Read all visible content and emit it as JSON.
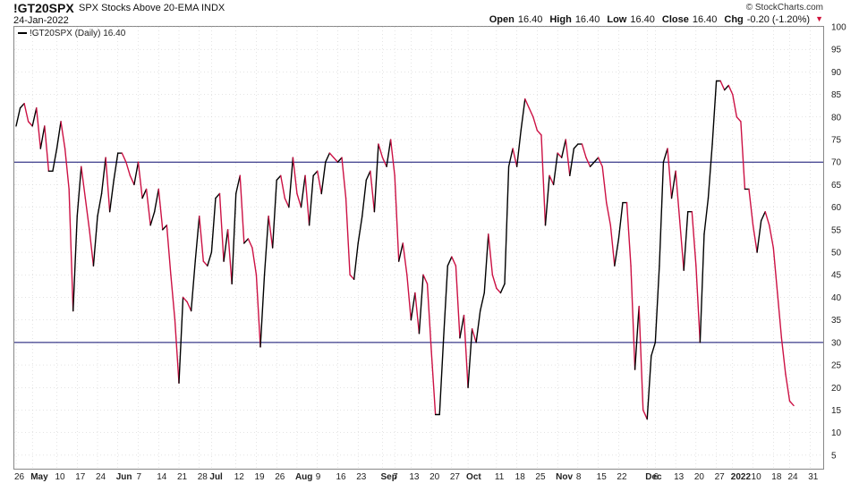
{
  "header": {
    "symbol": "!GT20SPX",
    "description": "SPX Stocks Above 20-EMA INDX",
    "date": "24-Jan-2022",
    "copyright": "© StockCharts.com",
    "ohlc": {
      "open_label": "Open",
      "open": "16.40",
      "high_label": "High",
      "high": "16.40",
      "low_label": "Low",
      "low": "16.40",
      "close_label": "Close",
      "close": "16.40",
      "chg_label": "Chg",
      "chg": "-0.20 (-1.20%)"
    }
  },
  "legend": {
    "label": "!GT20SPX (Daily) 16.40"
  },
  "colors": {
    "up": "#000000",
    "down": "#cc1144",
    "ref_line": "#0a0a6e",
    "grid": "#c8c8c8"
  },
  "chart_data": {
    "type": "line",
    "title": "SPX Stocks Above 20-EMA",
    "ylim": [
      2,
      100
    ],
    "y_ticks": [
      5,
      10,
      15,
      20,
      25,
      30,
      35,
      40,
      45,
      50,
      55,
      60,
      65,
      70,
      75,
      80,
      85,
      90,
      95,
      100
    ],
    "reference_lines": [
      70,
      30
    ],
    "x_ticks": [
      {
        "label": "26",
        "i": 0,
        "bold": false
      },
      {
        "label": "May",
        "i": 4,
        "bold": true
      },
      {
        "label": "10",
        "i": 10,
        "bold": false
      },
      {
        "label": "17",
        "i": 15,
        "bold": false
      },
      {
        "label": "24",
        "i": 20,
        "bold": false
      },
      {
        "label": "Jun",
        "i": 25,
        "bold": true
      },
      {
        "label": "7",
        "i": 30,
        "bold": false
      },
      {
        "label": "14",
        "i": 35,
        "bold": false
      },
      {
        "label": "21",
        "i": 40,
        "bold": false
      },
      {
        "label": "28",
        "i": 45,
        "bold": false
      },
      {
        "label": "Jul",
        "i": 48,
        "bold": true
      },
      {
        "label": "12",
        "i": 54,
        "bold": false
      },
      {
        "label": "19",
        "i": 59,
        "bold": false
      },
      {
        "label": "26",
        "i": 64,
        "bold": false
      },
      {
        "label": "Aug",
        "i": 69,
        "bold": true
      },
      {
        "label": "9",
        "i": 74,
        "bold": false
      },
      {
        "label": "16",
        "i": 79,
        "bold": false
      },
      {
        "label": "23",
        "i": 84,
        "bold": false
      },
      {
        "label": "Sep",
        "i": 90,
        "bold": true
      },
      {
        "label": "7",
        "i": 93,
        "bold": false
      },
      {
        "label": "13",
        "i": 97,
        "bold": false
      },
      {
        "label": "20",
        "i": 102,
        "bold": false
      },
      {
        "label": "27",
        "i": 107,
        "bold": false
      },
      {
        "label": "Oct",
        "i": 111,
        "bold": true
      },
      {
        "label": "11",
        "i": 118,
        "bold": false
      },
      {
        "label": "18",
        "i": 123,
        "bold": false
      },
      {
        "label": "25",
        "i": 128,
        "bold": false
      },
      {
        "label": "Nov",
        "i": 133,
        "bold": true
      },
      {
        "label": "8",
        "i": 138,
        "bold": false
      },
      {
        "label": "15",
        "i": 143,
        "bold": false
      },
      {
        "label": "22",
        "i": 148,
        "bold": false
      },
      {
        "label": "Dec",
        "i": 155,
        "bold": true
      },
      {
        "label": "6",
        "i": 157,
        "bold": false
      },
      {
        "label": "13",
        "i": 162,
        "bold": false
      },
      {
        "label": "20",
        "i": 167,
        "bold": false
      },
      {
        "label": "27",
        "i": 172,
        "bold": false
      },
      {
        "label": "2022",
        "i": 176,
        "bold": true
      },
      {
        "label": "10",
        "i": 181,
        "bold": false
      },
      {
        "label": "18",
        "i": 186,
        "bold": false
      },
      {
        "label": "24",
        "i": 190,
        "bold": false
      },
      {
        "label": "31",
        "i": 195,
        "bold": false
      }
    ],
    "series": [
      {
        "values": [
          78,
          82,
          83,
          79,
          78,
          82,
          73,
          78,
          68,
          68,
          73,
          79,
          73,
          64,
          37,
          58,
          69,
          62,
          55,
          47,
          58,
          63,
          71,
          59,
          66,
          72,
          72,
          70,
          67,
          65,
          70,
          62,
          64,
          56,
          59,
          64,
          55,
          56,
          45,
          35,
          21,
          40,
          39,
          37,
          48,
          58,
          48,
          47,
          50,
          62,
          63,
          48,
          55,
          43,
          63,
          67,
          52,
          53,
          51,
          45,
          29,
          45,
          58,
          51,
          66,
          67,
          62,
          60,
          71,
          63,
          60,
          67,
          56,
          67,
          68,
          63,
          70,
          72,
          71,
          70,
          71,
          62,
          45,
          44,
          52,
          58,
          66,
          68,
          59,
          74,
          71,
          69,
          75,
          67,
          48,
          52,
          45,
          35,
          41,
          32,
          45,
          43,
          28,
          14,
          14,
          31,
          47,
          49,
          47,
          31,
          36,
          20,
          33,
          30,
          37,
          41,
          54,
          45,
          42,
          41,
          43,
          69,
          73,
          69,
          77,
          84,
          82,
          80,
          77,
          76,
          56,
          67,
          65,
          72,
          71,
          75,
          67,
          73,
          74,
          74,
          71,
          69,
          70,
          71,
          69,
          61,
          56,
          47,
          53,
          61,
          61,
          47,
          24,
          38,
          15,
          13,
          27,
          30,
          47,
          70,
          73,
          62,
          68,
          57,
          46,
          59,
          59,
          47,
          30,
          54,
          62,
          74,
          88,
          88,
          86,
          87,
          85,
          80,
          79,
          64,
          64,
          56,
          50,
          57,
          59,
          56,
          51,
          41,
          31,
          23,
          17,
          16
        ]
      }
    ]
  }
}
